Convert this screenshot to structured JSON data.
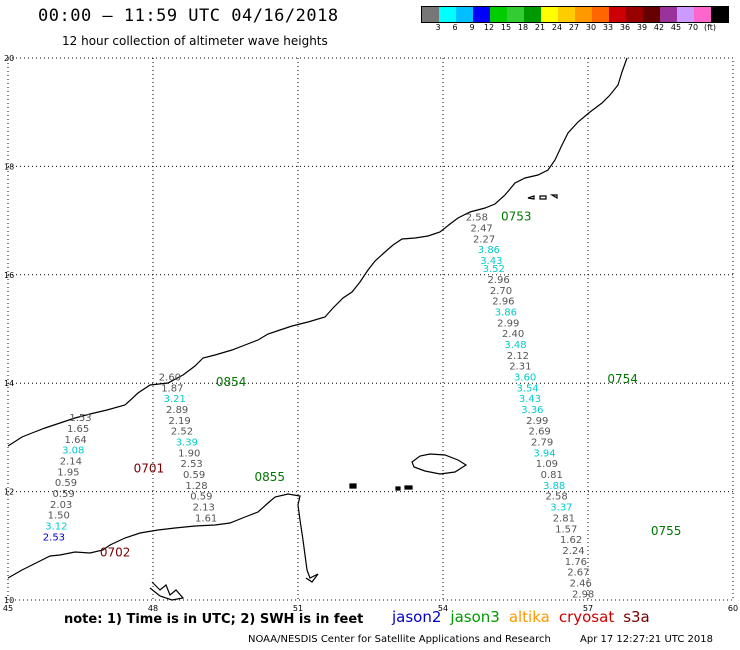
{
  "header": {
    "title": "00:00 – 11:59 UTC 04/16/2018",
    "subtitle": "12 hour collection of altimeter wave heights"
  },
  "colorbar": {
    "colors": [
      "#777777",
      "#00ffff",
      "#00bfff",
      "#0000ff",
      "#00cc00",
      "#33cc33",
      "#009900",
      "#ffff00",
      "#ffcc00",
      "#ff9900",
      "#ff6600",
      "#cc0000",
      "#990000",
      "#660000",
      "#993399",
      "#cc99ff",
      "#ff66cc",
      "#000000"
    ],
    "labels": [
      "3",
      "6",
      "9",
      "12",
      "15",
      "18",
      "21",
      "24",
      "27",
      "30",
      "33",
      "36",
      "39",
      "42",
      "45",
      "70",
      "(ft)"
    ]
  },
  "axes": {
    "x_ticks": [
      "45",
      "48",
      "51",
      "54",
      "57",
      "60"
    ],
    "y_ticks": [
      "20",
      "18",
      "16",
      "14",
      "12",
      "10"
    ],
    "x_range": [
      45,
      60
    ],
    "y_range": [
      10,
      20
    ]
  },
  "passes": [
    {
      "time": "0753",
      "color": "#007700",
      "lon": 55.2,
      "lat": 17.0
    },
    {
      "time": "0754",
      "color": "#007700",
      "lon": 57.4,
      "lat": 14.0
    },
    {
      "time": "0755",
      "color": "#007700",
      "lon": 58.3,
      "lat": 11.2
    },
    {
      "time": "0854",
      "color": "#007700",
      "lon": 49.3,
      "lat": 13.95
    },
    {
      "time": "0855",
      "color": "#007700",
      "lon": 50.1,
      "lat": 12.2
    },
    {
      "time": "0701",
      "color": "#770000",
      "lon": 47.6,
      "lat": 12.35
    },
    {
      "time": "0702",
      "color": "#770000",
      "lon": 46.9,
      "lat": 10.8
    }
  ],
  "tracks": [
    {
      "name": "track-east",
      "points": [
        {
          "v": "2.58",
          "lon": 54.7,
          "lat": 17.0,
          "c": "#555555"
        },
        {
          "v": "2.47",
          "lon": 54.8,
          "lat": 16.8,
          "c": "#555555"
        },
        {
          "v": "2.27",
          "lon": 54.85,
          "lat": 16.6,
          "c": "#555555"
        },
        {
          "v": "3.86",
          "lon": 54.95,
          "lat": 16.4,
          "c": "#00cccc"
        },
        {
          "v": "3.43",
          "lon": 55.0,
          "lat": 16.2,
          "c": "#00cccc"
        },
        {
          "v": "3.52",
          "lon": 55.05,
          "lat": 16.05,
          "c": "#00cccc"
        },
        {
          "v": "2.96",
          "lon": 55.15,
          "lat": 15.85,
          "c": "#555555"
        },
        {
          "v": "2.70",
          "lon": 55.2,
          "lat": 15.65,
          "c": "#555555"
        },
        {
          "v": "2.96",
          "lon": 55.25,
          "lat": 15.45,
          "c": "#555555"
        },
        {
          "v": "3.86",
          "lon": 55.3,
          "lat": 15.25,
          "c": "#00cccc"
        },
        {
          "v": "2.99",
          "lon": 55.35,
          "lat": 15.05,
          "c": "#555555"
        },
        {
          "v": "2.40",
          "lon": 55.45,
          "lat": 14.85,
          "c": "#555555"
        },
        {
          "v": "3.48",
          "lon": 55.5,
          "lat": 14.65,
          "c": "#00cccc"
        },
        {
          "v": "2.12",
          "lon": 55.55,
          "lat": 14.45,
          "c": "#555555"
        },
        {
          "v": "2.31",
          "lon": 55.6,
          "lat": 14.25,
          "c": "#555555"
        },
        {
          "v": "3.60",
          "lon": 55.7,
          "lat": 14.05,
          "c": "#00cccc"
        },
        {
          "v": "3.54",
          "lon": 55.75,
          "lat": 13.85,
          "c": "#00cccc"
        },
        {
          "v": "3.43",
          "lon": 55.8,
          "lat": 13.65,
          "c": "#00cccc"
        },
        {
          "v": "3.36",
          "lon": 55.85,
          "lat": 13.45,
          "c": "#00cccc"
        },
        {
          "v": "2.99",
          "lon": 55.95,
          "lat": 13.25,
          "c": "#555555"
        },
        {
          "v": "2.69",
          "lon": 56.0,
          "lat": 13.05,
          "c": "#555555"
        },
        {
          "v": "2.79",
          "lon": 56.05,
          "lat": 12.85,
          "c": "#555555"
        },
        {
          "v": "3.94",
          "lon": 56.1,
          "lat": 12.65,
          "c": "#00cccc"
        },
        {
          "v": "1.09",
          "lon": 56.15,
          "lat": 12.45,
          "c": "#555555"
        },
        {
          "v": "0.81",
          "lon": 56.25,
          "lat": 12.25,
          "c": "#555555"
        },
        {
          "v": "3.88",
          "lon": 56.3,
          "lat": 12.05,
          "c": "#00cccc"
        },
        {
          "v": "2.58",
          "lon": 56.35,
          "lat": 11.85,
          "c": "#555555"
        },
        {
          "v": "3.37",
          "lon": 56.45,
          "lat": 11.65,
          "c": "#00cccc"
        },
        {
          "v": "2.81",
          "lon": 56.5,
          "lat": 11.45,
          "c": "#555555"
        },
        {
          "v": "1.57",
          "lon": 56.55,
          "lat": 11.25,
          "c": "#555555"
        },
        {
          "v": "1.62",
          "lon": 56.65,
          "lat": 11.05,
          "c": "#555555"
        },
        {
          "v": "2.24",
          "lon": 56.7,
          "lat": 10.85,
          "c": "#555555"
        },
        {
          "v": "1.76",
          "lon": 56.75,
          "lat": 10.65,
          "c": "#555555"
        },
        {
          "v": "2.67",
          "lon": 56.8,
          "lat": 10.45,
          "c": "#555555"
        },
        {
          "v": "2.46",
          "lon": 56.85,
          "lat": 10.25,
          "c": "#555555"
        },
        {
          "v": "2.98",
          "lon": 56.9,
          "lat": 10.05,
          "c": "#555555"
        }
      ]
    },
    {
      "name": "track-middle",
      "points": [
        {
          "v": "2.60",
          "lon": 48.35,
          "lat": 14.05,
          "c": "#555555"
        },
        {
          "v": "1.87",
          "lon": 48.4,
          "lat": 13.85,
          "c": "#555555"
        },
        {
          "v": "3.21",
          "lon": 48.45,
          "lat": 13.65,
          "c": "#00cccc"
        },
        {
          "v": "2.89",
          "lon": 48.5,
          "lat": 13.45,
          "c": "#555555"
        },
        {
          "v": "2.19",
          "lon": 48.55,
          "lat": 13.25,
          "c": "#555555"
        },
        {
          "v": "2.52",
          "lon": 48.6,
          "lat": 13.05,
          "c": "#555555"
        },
        {
          "v": "3.39",
          "lon": 48.7,
          "lat": 12.85,
          "c": "#00cccc"
        },
        {
          "v": "1.90",
          "lon": 48.75,
          "lat": 12.65,
          "c": "#555555"
        },
        {
          "v": "2.53",
          "lon": 48.8,
          "lat": 12.45,
          "c": "#555555"
        },
        {
          "v": "0.59",
          "lon": 48.85,
          "lat": 12.25,
          "c": "#555555"
        },
        {
          "v": "1.28",
          "lon": 48.9,
          "lat": 12.05,
          "c": "#555555"
        },
        {
          "v": "0.59",
          "lon": 49.0,
          "lat": 11.85,
          "c": "#555555"
        },
        {
          "v": "2.13",
          "lon": 49.05,
          "lat": 11.65,
          "c": "#555555"
        },
        {
          "v": "1.61",
          "lon": 49.1,
          "lat": 11.45,
          "c": "#555555"
        }
      ]
    },
    {
      "name": "track-west",
      "points": [
        {
          "v": "1.53",
          "lon": 46.5,
          "lat": 13.3,
          "c": "#555555"
        },
        {
          "v": "1.65",
          "lon": 46.45,
          "lat": 13.1,
          "c": "#555555"
        },
        {
          "v": "1.64",
          "lon": 46.4,
          "lat": 12.9,
          "c": "#555555"
        },
        {
          "v": "3.08",
          "lon": 46.35,
          "lat": 12.7,
          "c": "#00cccc"
        },
        {
          "v": "2.14",
          "lon": 46.3,
          "lat": 12.5,
          "c": "#555555"
        },
        {
          "v": "1.95",
          "lon": 46.25,
          "lat": 12.3,
          "c": "#555555"
        },
        {
          "v": "0.59",
          "lon": 46.2,
          "lat": 12.1,
          "c": "#555555"
        },
        {
          "v": "0.59",
          "lon": 46.15,
          "lat": 11.9,
          "c": "#555555"
        },
        {
          "v": "2.03",
          "lon": 46.1,
          "lat": 11.7,
          "c": "#555555"
        },
        {
          "v": "1.50",
          "lon": 46.05,
          "lat": 11.5,
          "c": "#555555"
        },
        {
          "v": "3.12",
          "lon": 46.0,
          "lat": 11.3,
          "c": "#00cccc"
        },
        {
          "v": "2.53",
          "lon": 45.95,
          "lat": 11.1,
          "c": "#0000cc"
        }
      ]
    }
  ],
  "footer": {
    "note": "note:  1) Time is in UTC;  2) SWH is in feet",
    "credit": "NOAA/NESDIS Center for Satellite Applications and Research",
    "timestamp": "Apr 17 12:27:21 UTC 2018"
  },
  "legend": [
    {
      "label": "jason2",
      "color": "#0000cc"
    },
    {
      "label": "jason3",
      "color": "#009900"
    },
    {
      "label": "altika",
      "color": "#ff9900"
    },
    {
      "label": "cryosat",
      "color": "#cc0000"
    },
    {
      "label": "s3a",
      "color": "#770000"
    }
  ]
}
